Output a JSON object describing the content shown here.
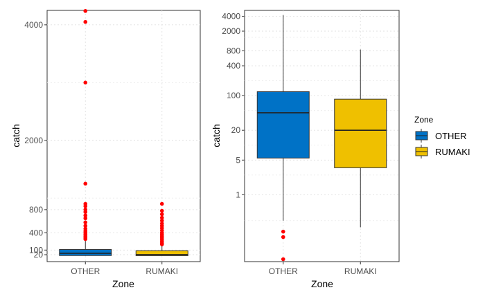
{
  "chart_data": [
    {
      "type": "boxplot",
      "xlabel": "Zone",
      "ylabel": "catch",
      "y_scale": "linear",
      "ylim": [
        -100,
        4250
      ],
      "y_ticks": [
        20,
        100,
        400,
        800,
        2000,
        4000
      ],
      "grid": true,
      "categories": [
        "OTHER",
        "RUMAKI"
      ],
      "series": [
        {
          "name": "OTHER",
          "color": "#0072C6",
          "q1": 5,
          "median": 45,
          "q3": 110,
          "whisker_low": 0,
          "whisker_high": 260,
          "outliers": [
            4240,
            4050,
            3000,
            1250,
            900,
            860,
            800,
            760,
            700,
            650,
            580,
            520,
            470,
            430,
            400,
            370,
            340,
            310,
            290
          ]
        },
        {
          "name": "RUMAKI",
          "color": "#EFC000",
          "q1": 3,
          "median": 20,
          "q3": 90,
          "whisker_low": 0,
          "whisker_high": 180,
          "outliers": [
            900,
            780,
            720,
            660,
            610,
            560,
            520,
            480,
            440,
            400,
            370,
            340,
            310,
            280,
            250,
            220,
            200
          ]
        }
      ]
    },
    {
      "type": "boxplot",
      "xlabel": "Zone",
      "ylabel": "catch",
      "y_scale": "log",
      "ylim_log10": [
        -1.35,
        3.72
      ],
      "y_ticks": [
        1,
        5,
        20,
        100,
        400,
        800,
        2000,
        4000
      ],
      "grid": true,
      "categories": [
        "OTHER",
        "RUMAKI"
      ],
      "series": [
        {
          "name": "OTHER",
          "color": "#0072C6",
          "q1": 5.5,
          "median": 45,
          "q3": 120,
          "whisker_low": 0.3,
          "whisker_high": 4200,
          "outliers": [
            0.18,
            0.14,
            0.05
          ]
        },
        {
          "name": "RUMAKI",
          "color": "#EFC000",
          "q1": 3.5,
          "median": 20,
          "q3": 85,
          "whisker_low": 0.22,
          "whisker_high": 850,
          "outliers": []
        }
      ]
    }
  ],
  "legend": {
    "title": "Zone",
    "position": "right",
    "items": [
      {
        "label": "OTHER",
        "color": "#0072C6"
      },
      {
        "label": "RUMAKI",
        "color": "#EFC000"
      }
    ]
  }
}
